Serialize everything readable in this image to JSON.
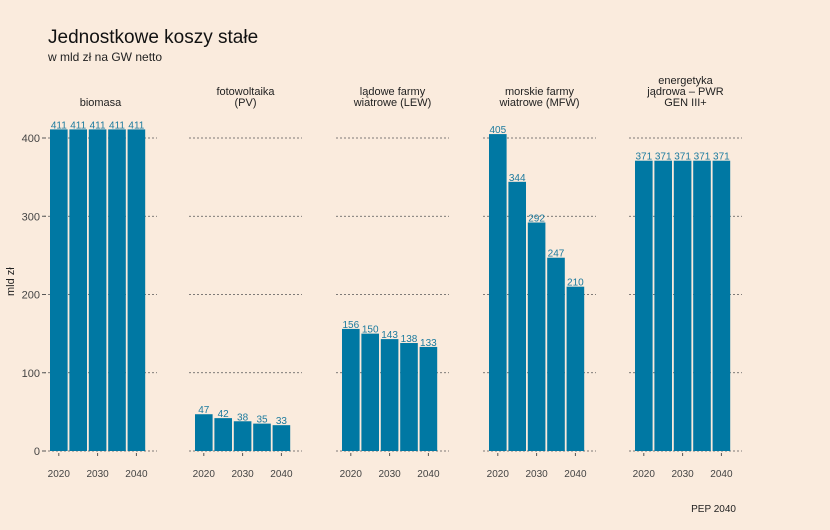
{
  "title": "Jednostkowe koszy stałe",
  "subtitle": "w mld zł na GW netto",
  "caption": "PEP 2040",
  "colors": {
    "bar": "#0078a3",
    "background": "#faebdd",
    "label": "#1b7a9e"
  },
  "chart_data": {
    "type": "bar",
    "ylabel": "mld zł",
    "xlabel": "",
    "ylim": [
      0,
      430
    ],
    "yticks": [
      0,
      100,
      200,
      300,
      400
    ],
    "grid": "dashed-horizontal",
    "x": [
      2020,
      2025,
      2030,
      2035,
      2040
    ],
    "xticks": [
      2020,
      2030,
      2040
    ],
    "facets": [
      {
        "title": [
          "biomasa"
        ],
        "values": [
          411,
          411,
          411,
          411,
          411
        ]
      },
      {
        "title": [
          "fotowoltaika",
          "(PV)"
        ],
        "values": [
          47,
          42,
          38,
          35,
          33
        ]
      },
      {
        "title": [
          "lądowe farmy",
          "wiatrowe (LEW)"
        ],
        "values": [
          156,
          150,
          143,
          138,
          133
        ]
      },
      {
        "title": [
          "morskie farmy",
          "wiatrowe (MFW)"
        ],
        "values": [
          405,
          344,
          292,
          247,
          210
        ]
      },
      {
        "title": [
          "energetyka",
          "jądrowa – PWR",
          "GEN III+"
        ],
        "values": [
          371,
          371,
          371,
          371,
          371
        ]
      }
    ]
  }
}
